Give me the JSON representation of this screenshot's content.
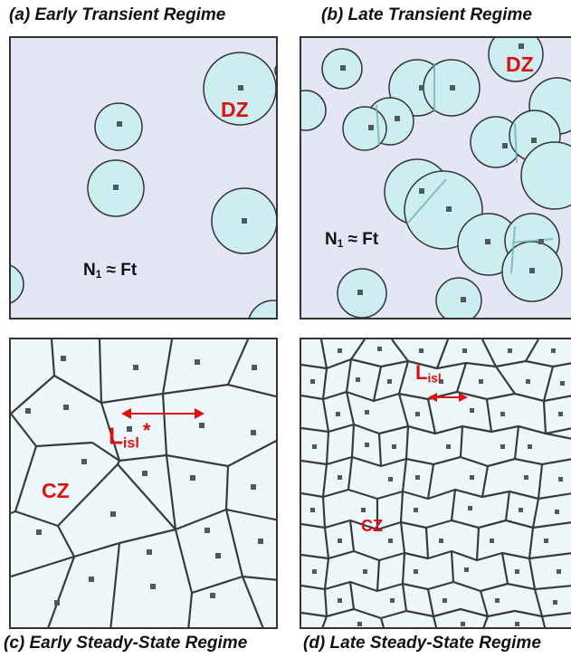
{
  "captions": {
    "a": "(a) Early Transient Regime",
    "b": "(b) Late Transient Regime",
    "c": "(c) Early Steady-State Regime",
    "d": "(d) Late Steady-State Regime"
  },
  "labels": {
    "dz": "DZ",
    "cz": "CZ",
    "n_main": "N",
    "n_sub": "1",
    "n_rest": " ≈ Ft",
    "l_main": "L",
    "l_sub": "isl",
    "star": "*"
  },
  "colors": {
    "panel_bg": "#e4e6f5",
    "disc_fill": "#cdeef0",
    "cell_fill": "#eef8fb",
    "stroke": "#3a3a3a",
    "dot": "#4c5a5e",
    "accent": "#e01010"
  }
}
